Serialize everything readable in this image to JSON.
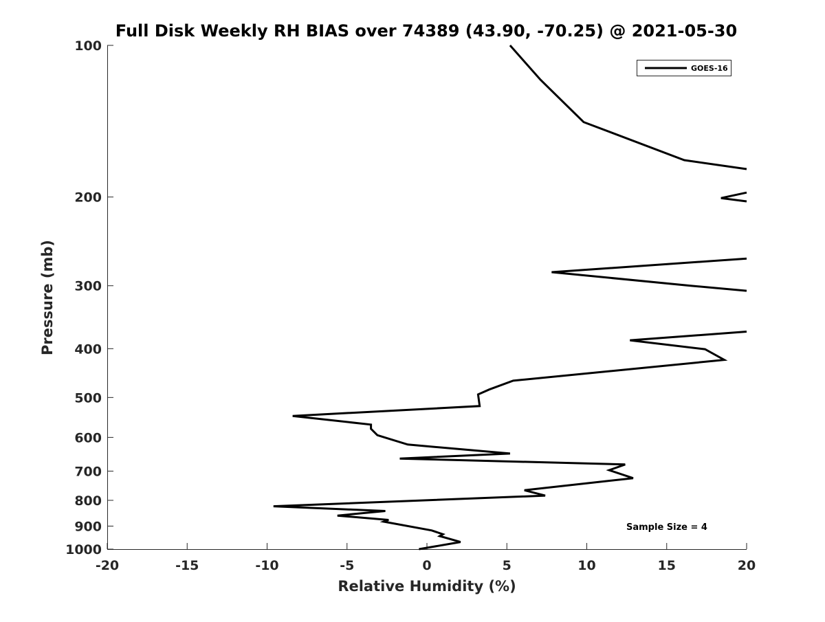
{
  "chart_data": {
    "type": "line",
    "title": "Full Disk Weekly RH BIAS over 74389 (43.90, -70.25) @ 2021-05-30",
    "xlabel": "Relative Humidity (%)",
    "ylabel": "Pressure (mb)",
    "xlim": [
      -20,
      20
    ],
    "ylim": [
      1000,
      100
    ],
    "y_scale": "log",
    "y_reversed": true,
    "grid": false,
    "legend_position": "top-right",
    "x_ticks": [
      "-20",
      "-15",
      "-10",
      "-5",
      "0",
      "5",
      "10",
      "15",
      "20"
    ],
    "y_ticks": [
      "100",
      "200",
      "300",
      "400",
      "500",
      "600",
      "700",
      "800",
      "900",
      "1000"
    ],
    "series": [
      {
        "name": "GOES-16",
        "color": "#000000",
        "points": [
          [
            5.2,
            100
          ],
          [
            7.1,
            117
          ],
          [
            9.8,
            142
          ],
          [
            16.1,
            169
          ],
          [
            20,
            176
          ],
          [
            null,
            null
          ],
          [
            20,
            196
          ],
          [
            18.4,
            201
          ],
          [
            20,
            204
          ],
          [
            null,
            null
          ],
          [
            20,
            265
          ],
          [
            7.8,
            282
          ],
          [
            16.5,
            300
          ],
          [
            20,
            307
          ],
          [
            null,
            null
          ],
          [
            20,
            370
          ],
          [
            12.7,
            385
          ],
          [
            17.4,
            401
          ],
          [
            18.6,
            421
          ],
          [
            5.4,
            463
          ],
          [
            3.9,
            482
          ],
          [
            3.2,
            493
          ],
          [
            3.3,
            520
          ],
          [
            -8.4,
            544
          ],
          [
            -3.5,
            566
          ],
          [
            -3.5,
            577
          ],
          [
            -3.1,
            594
          ],
          [
            -1.2,
            620
          ],
          [
            5.2,
            646
          ],
          [
            -1.7,
            661
          ],
          [
            12.4,
            679
          ],
          [
            11.4,
            697
          ],
          [
            12.9,
            723
          ],
          [
            6.1,
            764
          ],
          [
            7.4,
            783
          ],
          [
            -9.6,
            822
          ],
          [
            -2.6,
            840
          ],
          [
            -5.6,
            858
          ],
          [
            -2.4,
            875
          ],
          [
            -2.7,
            882
          ],
          [
            0.3,
            918
          ],
          [
            1.0,
            934
          ],
          [
            0.8,
            942
          ],
          [
            2.1,
            968
          ],
          [
            -0.5,
            1000
          ]
        ]
      }
    ],
    "annotations": [
      "Sample Size = 4"
    ]
  }
}
